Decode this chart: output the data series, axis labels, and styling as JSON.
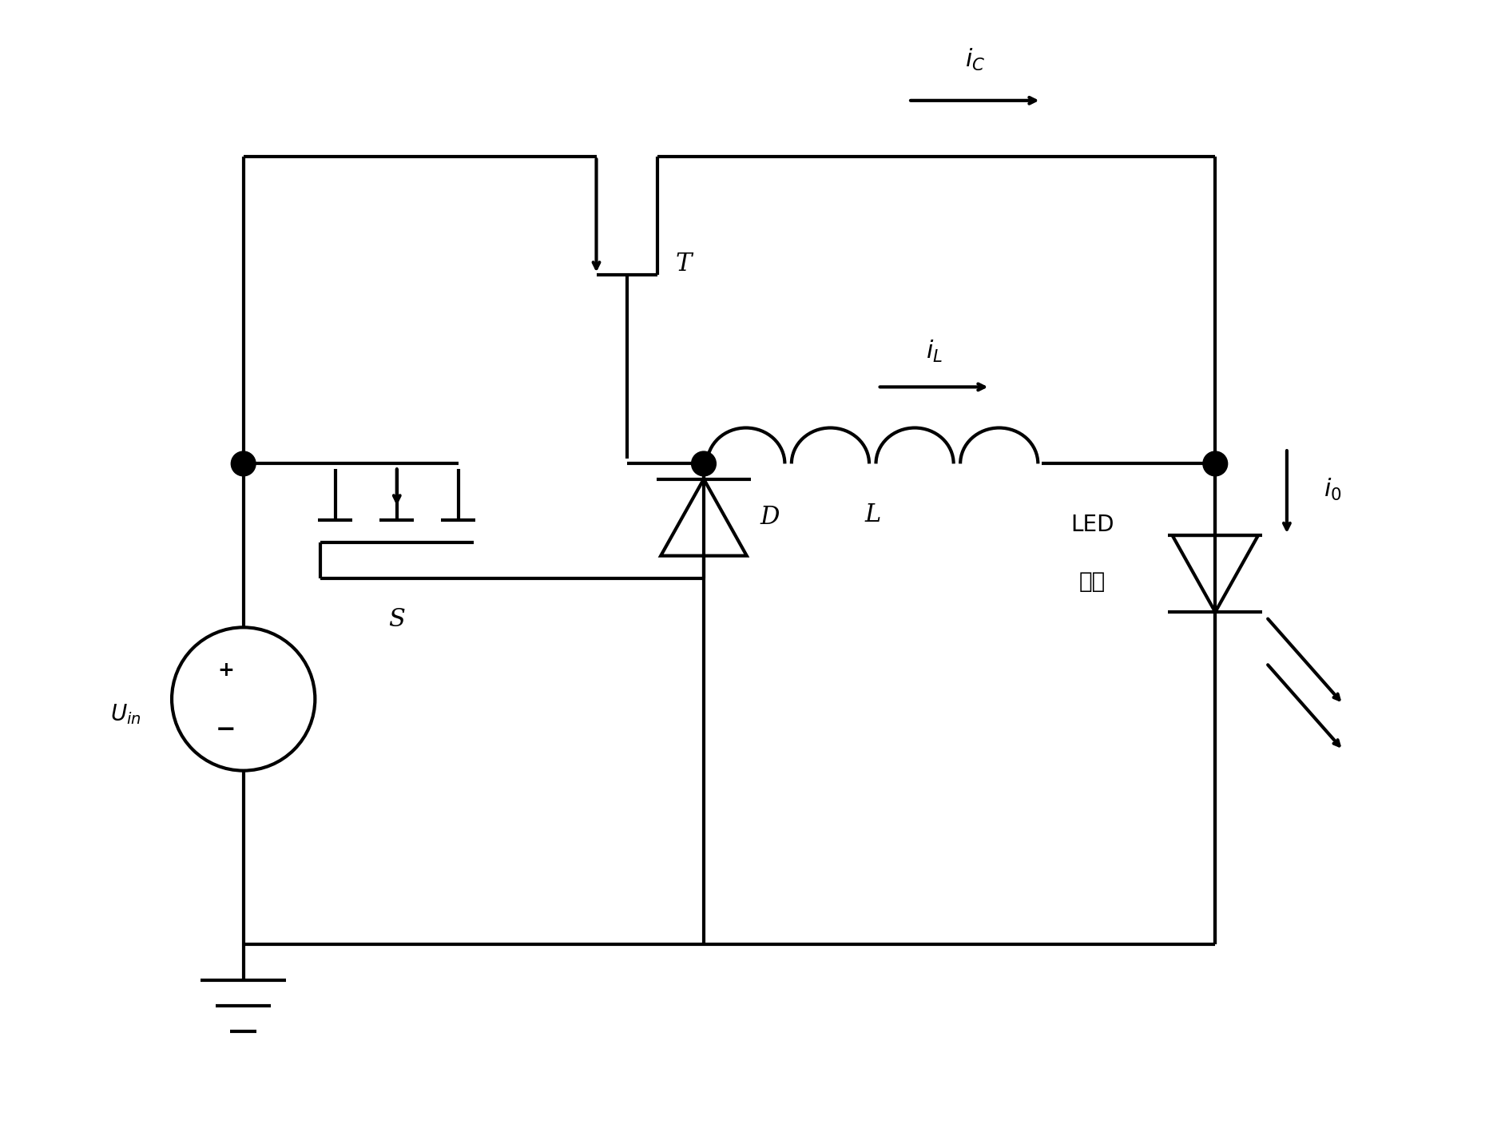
{
  "bg_color": "#ffffff",
  "line_color": "#000000",
  "lw": 3.0,
  "fig_w": 18.9,
  "fig_h": 14.17,
  "dpi": 100,
  "xlim": [
    0,
    14
  ],
  "ylim": [
    0,
    11
  ]
}
